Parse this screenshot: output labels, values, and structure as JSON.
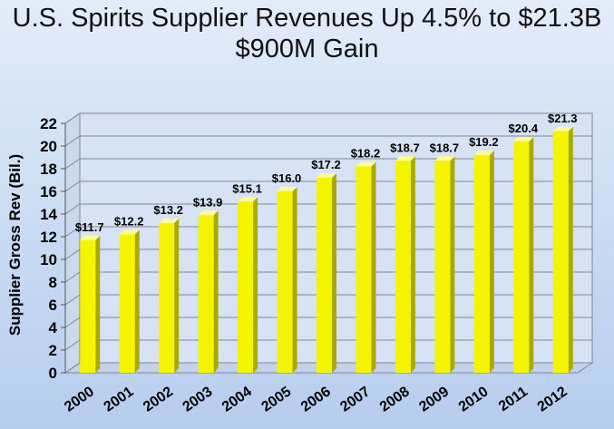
{
  "title": "U.S. Spirits Supplier Revenues Up 4.5% to $21.3B",
  "subtitle": "$900M Gain",
  "colors": {
    "bar_front": "#f4f400",
    "bar_side": "#a9a900",
    "bar_top": "#fbfb9a",
    "grid": "#7f8794",
    "wall": "#d7e3f5"
  },
  "chart_data": {
    "type": "bar",
    "title": "U.S. Spirits Supplier Revenues Up 4.5% to $21.3B",
    "subtitle": "$900M Gain",
    "xlabel": "",
    "ylabel": "Supplier Gross Rev (Bil.)",
    "categories": [
      "2000",
      "2001",
      "2002",
      "2003",
      "2004",
      "2005",
      "2006",
      "2007",
      "2008",
      "2009",
      "2010",
      "2011",
      "2012"
    ],
    "values": [
      11.7,
      12.2,
      13.2,
      13.9,
      15.1,
      16.0,
      17.2,
      18.2,
      18.7,
      18.7,
      19.2,
      20.4,
      21.3
    ],
    "data_labels": [
      "$11.7",
      "$12.2",
      "$13.2",
      "$13.9",
      "$15.1",
      "$16.0",
      "$17.2",
      "$18.2",
      "$18.7",
      "$18.7",
      "$19.2",
      "$20.4",
      "$21.3"
    ],
    "ylim": [
      0,
      22
    ],
    "yticks": [
      0,
      2,
      4,
      6,
      8,
      10,
      12,
      14,
      16,
      18,
      20,
      22
    ],
    "grid": true,
    "legend": "none"
  }
}
